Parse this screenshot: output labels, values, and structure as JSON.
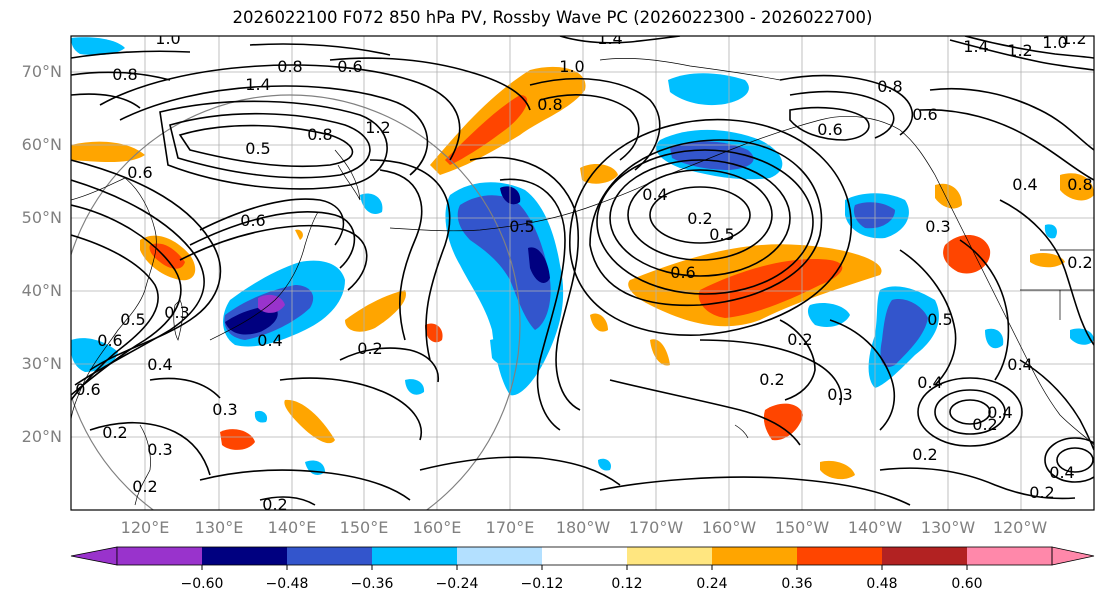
{
  "title": "2026022100 F072 850 hPa PV, Rossby Wave PC (2026022300 - 2026022700)",
  "lat_labels": [
    "70°N",
    "60°N",
    "50°N",
    "40°N",
    "30°N",
    "20°N"
  ],
  "lon_labels": [
    "120°E",
    "130°E",
    "140°E",
    "150°E",
    "160°E",
    "170°E",
    "180°W",
    "170°W",
    "160°W",
    "150°W",
    "140°W",
    "130°W",
    "120°W"
  ],
  "colorbar": {
    "tick_labels": [
      "−0.60",
      "−0.48",
      "−0.36",
      "−0.24",
      "−0.12",
      "0.12",
      "0.24",
      "0.36",
      "0.48",
      "0.60"
    ],
    "colors": [
      "#9933cc",
      "#000080",
      "#3355cc",
      "#00bfff",
      "#b3e0ff",
      "#ffffff",
      "#ffe680",
      "#ffa500",
      "#ff4500",
      "#b22222",
      "#ff88aa"
    ]
  },
  "pv_contour_labels": [
    "1.0",
    "0.8",
    "0.6",
    "1.4",
    "1.2",
    "1.0",
    "1.4",
    "1.2",
    "1.0",
    "0.8",
    "1.4",
    "1.2",
    "0.8",
    "0.5",
    "0.6",
    "0.5",
    "0.6",
    "0.3",
    "0.4",
    "0.2",
    "0.5",
    "0.2",
    "0.4",
    "0.3",
    "0.2",
    "0.2",
    "0.3",
    "0.4",
    "0.2",
    "0.2",
    "0.4",
    "0.2",
    "0.6",
    "0.5",
    "0.2",
    "0.3",
    "0.4",
    "0.4",
    "0.6",
    "0.3",
    "0.6",
    "0.8",
    "0.4",
    "0.5",
    "0.6",
    "0.2",
    "0.2",
    "0.4",
    "0.2",
    "0.8",
    "0.8",
    "0.6"
  ]
}
